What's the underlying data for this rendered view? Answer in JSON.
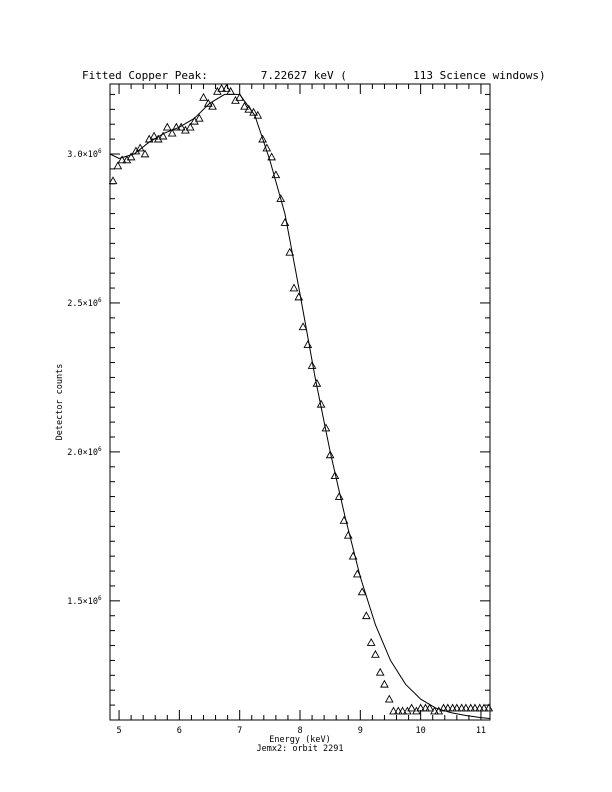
{
  "chart_data": {
    "type": "scatter",
    "title": "Fitted Copper Peak:        7.22627 keV (          113 Science windows)",
    "xlabel": "Energy (keV)",
    "ylabel": "Detector counts",
    "subtitle": "Jemx2: orbit 2291",
    "xlim": [
      4.85,
      11.15
    ],
    "ylim": [
      1100000.0,
      3235000.0
    ],
    "x_ticks": [
      {
        "value": 5,
        "label": "5"
      },
      {
        "value": 6,
        "label": "6"
      },
      {
        "value": 7,
        "label": "7"
      },
      {
        "value": 8,
        "label": "8"
      },
      {
        "value": 9,
        "label": "9"
      },
      {
        "value": 10,
        "label": "10"
      },
      {
        "value": 11,
        "label": "11"
      }
    ],
    "y_ticks": [
      {
        "value": 1500000.0,
        "mantissa": "1.5×10",
        "exponent": "6"
      },
      {
        "value": 2000000.0,
        "mantissa": "2.0×10",
        "exponent": "6"
      },
      {
        "value": 2500000.0,
        "mantissa": "2.5×10",
        "exponent": "6"
      },
      {
        "value": 3000000.0,
        "mantissa": "3.0×10",
        "exponent": "6"
      }
    ],
    "grid": false,
    "series": [
      {
        "marker": "triangle-open",
        "x": [
          4.9,
          4.98,
          5.05,
          5.13,
          5.2,
          5.28,
          5.35,
          5.43,
          5.5,
          5.58,
          5.65,
          5.73,
          5.8,
          5.88,
          5.95,
          6.03,
          6.1,
          6.18,
          6.25,
          6.33,
          6.4,
          6.48,
          6.55,
          6.63,
          6.7,
          6.78,
          6.85,
          6.93,
          7.0,
          7.08,
          7.15,
          7.23,
          7.3,
          7.38,
          7.45,
          7.53,
          7.6,
          7.68,
          7.75,
          7.83,
          7.9,
          7.98,
          8.05,
          8.13,
          8.2,
          8.28,
          8.35,
          8.43,
          8.5,
          8.58,
          8.65,
          8.73,
          8.8,
          8.88,
          8.95,
          9.03,
          9.1,
          9.18,
          9.25,
          9.33,
          9.4,
          9.48,
          9.55,
          9.63,
          9.7,
          9.78,
          9.85,
          9.93,
          10.0,
          10.08,
          10.15,
          10.23,
          10.3,
          10.38,
          10.45,
          10.53,
          10.6,
          10.68,
          10.75,
          10.83,
          10.9,
          10.98,
          11.05,
          11.13
        ],
        "y": [
          2910000.0,
          2960000.0,
          2980000.0,
          2980000.0,
          2990000.0,
          3010000.0,
          3020000.0,
          3000000.0,
          3050000.0,
          3060000.0,
          3050000.0,
          3060000.0,
          3090000.0,
          3070000.0,
          3090000.0,
          3090000.0,
          3080000.0,
          3090000.0,
          3110000.0,
          3120000.0,
          3190000.0,
          3170000.0,
          3160000.0,
          3210000.0,
          3220000.0,
          3220000.0,
          3210000.0,
          3180000.0,
          3190000.0,
          3160000.0,
          3150000.0,
          3140000.0,
          3130000.0,
          3050000.0,
          3020000.0,
          2990000.0,
          2930000.0,
          2850000.0,
          2770000.0,
          2670000.0,
          2550000.0,
          2520000.0,
          2420000.0,
          2360000.0,
          2290000.0,
          2230000.0,
          2160000.0,
          2080000.0,
          1990000.0,
          1920000.0,
          1850000.0,
          1770000.0,
          1720000.0,
          1650000.0,
          1590000.0,
          1530000.0,
          1450000.0,
          1360000.0,
          1320000.0,
          1260000.0,
          1220000.0,
          1170000.0,
          1130000.0,
          1130000.0,
          1130000.0,
          1130000.0,
          1140000.0,
          1130000.0,
          1140000.0,
          1140000.0,
          1140000.0,
          1130000.0,
          1130000.0,
          1140000.0,
          1140000.0,
          1140000.0,
          1140000.0,
          1140000.0,
          1140000.0,
          1140000.0,
          1140000.0,
          1140000.0,
          1140000.0,
          1140000.0
        ]
      },
      {
        "marker": "line",
        "x": [
          4.85,
          5.0,
          5.25,
          5.5,
          5.75,
          6.0,
          6.25,
          6.5,
          6.75,
          7.0,
          7.25,
          7.5,
          7.75,
          8.0,
          8.25,
          8.5,
          8.75,
          9.0,
          9.25,
          9.5,
          9.75,
          10.0,
          10.25,
          10.5,
          10.75,
          11.0,
          11.15
        ],
        "y": [
          3000000.0,
          2985000.0,
          3000000.0,
          3040000.0,
          3070000.0,
          3090000.0,
          3120000.0,
          3170000.0,
          3200000.0,
          3200000.0,
          3130000.0,
          2980000.0,
          2800000.0,
          2530000.0,
          2250000.0,
          2000000.0,
          1780000.0,
          1580000.0,
          1420000.0,
          1300000.0,
          1220000.0,
          1170000.0,
          1140000.0,
          1125000.0,
          1115000.0,
          1108000.0,
          1105000.0
        ]
      }
    ]
  }
}
